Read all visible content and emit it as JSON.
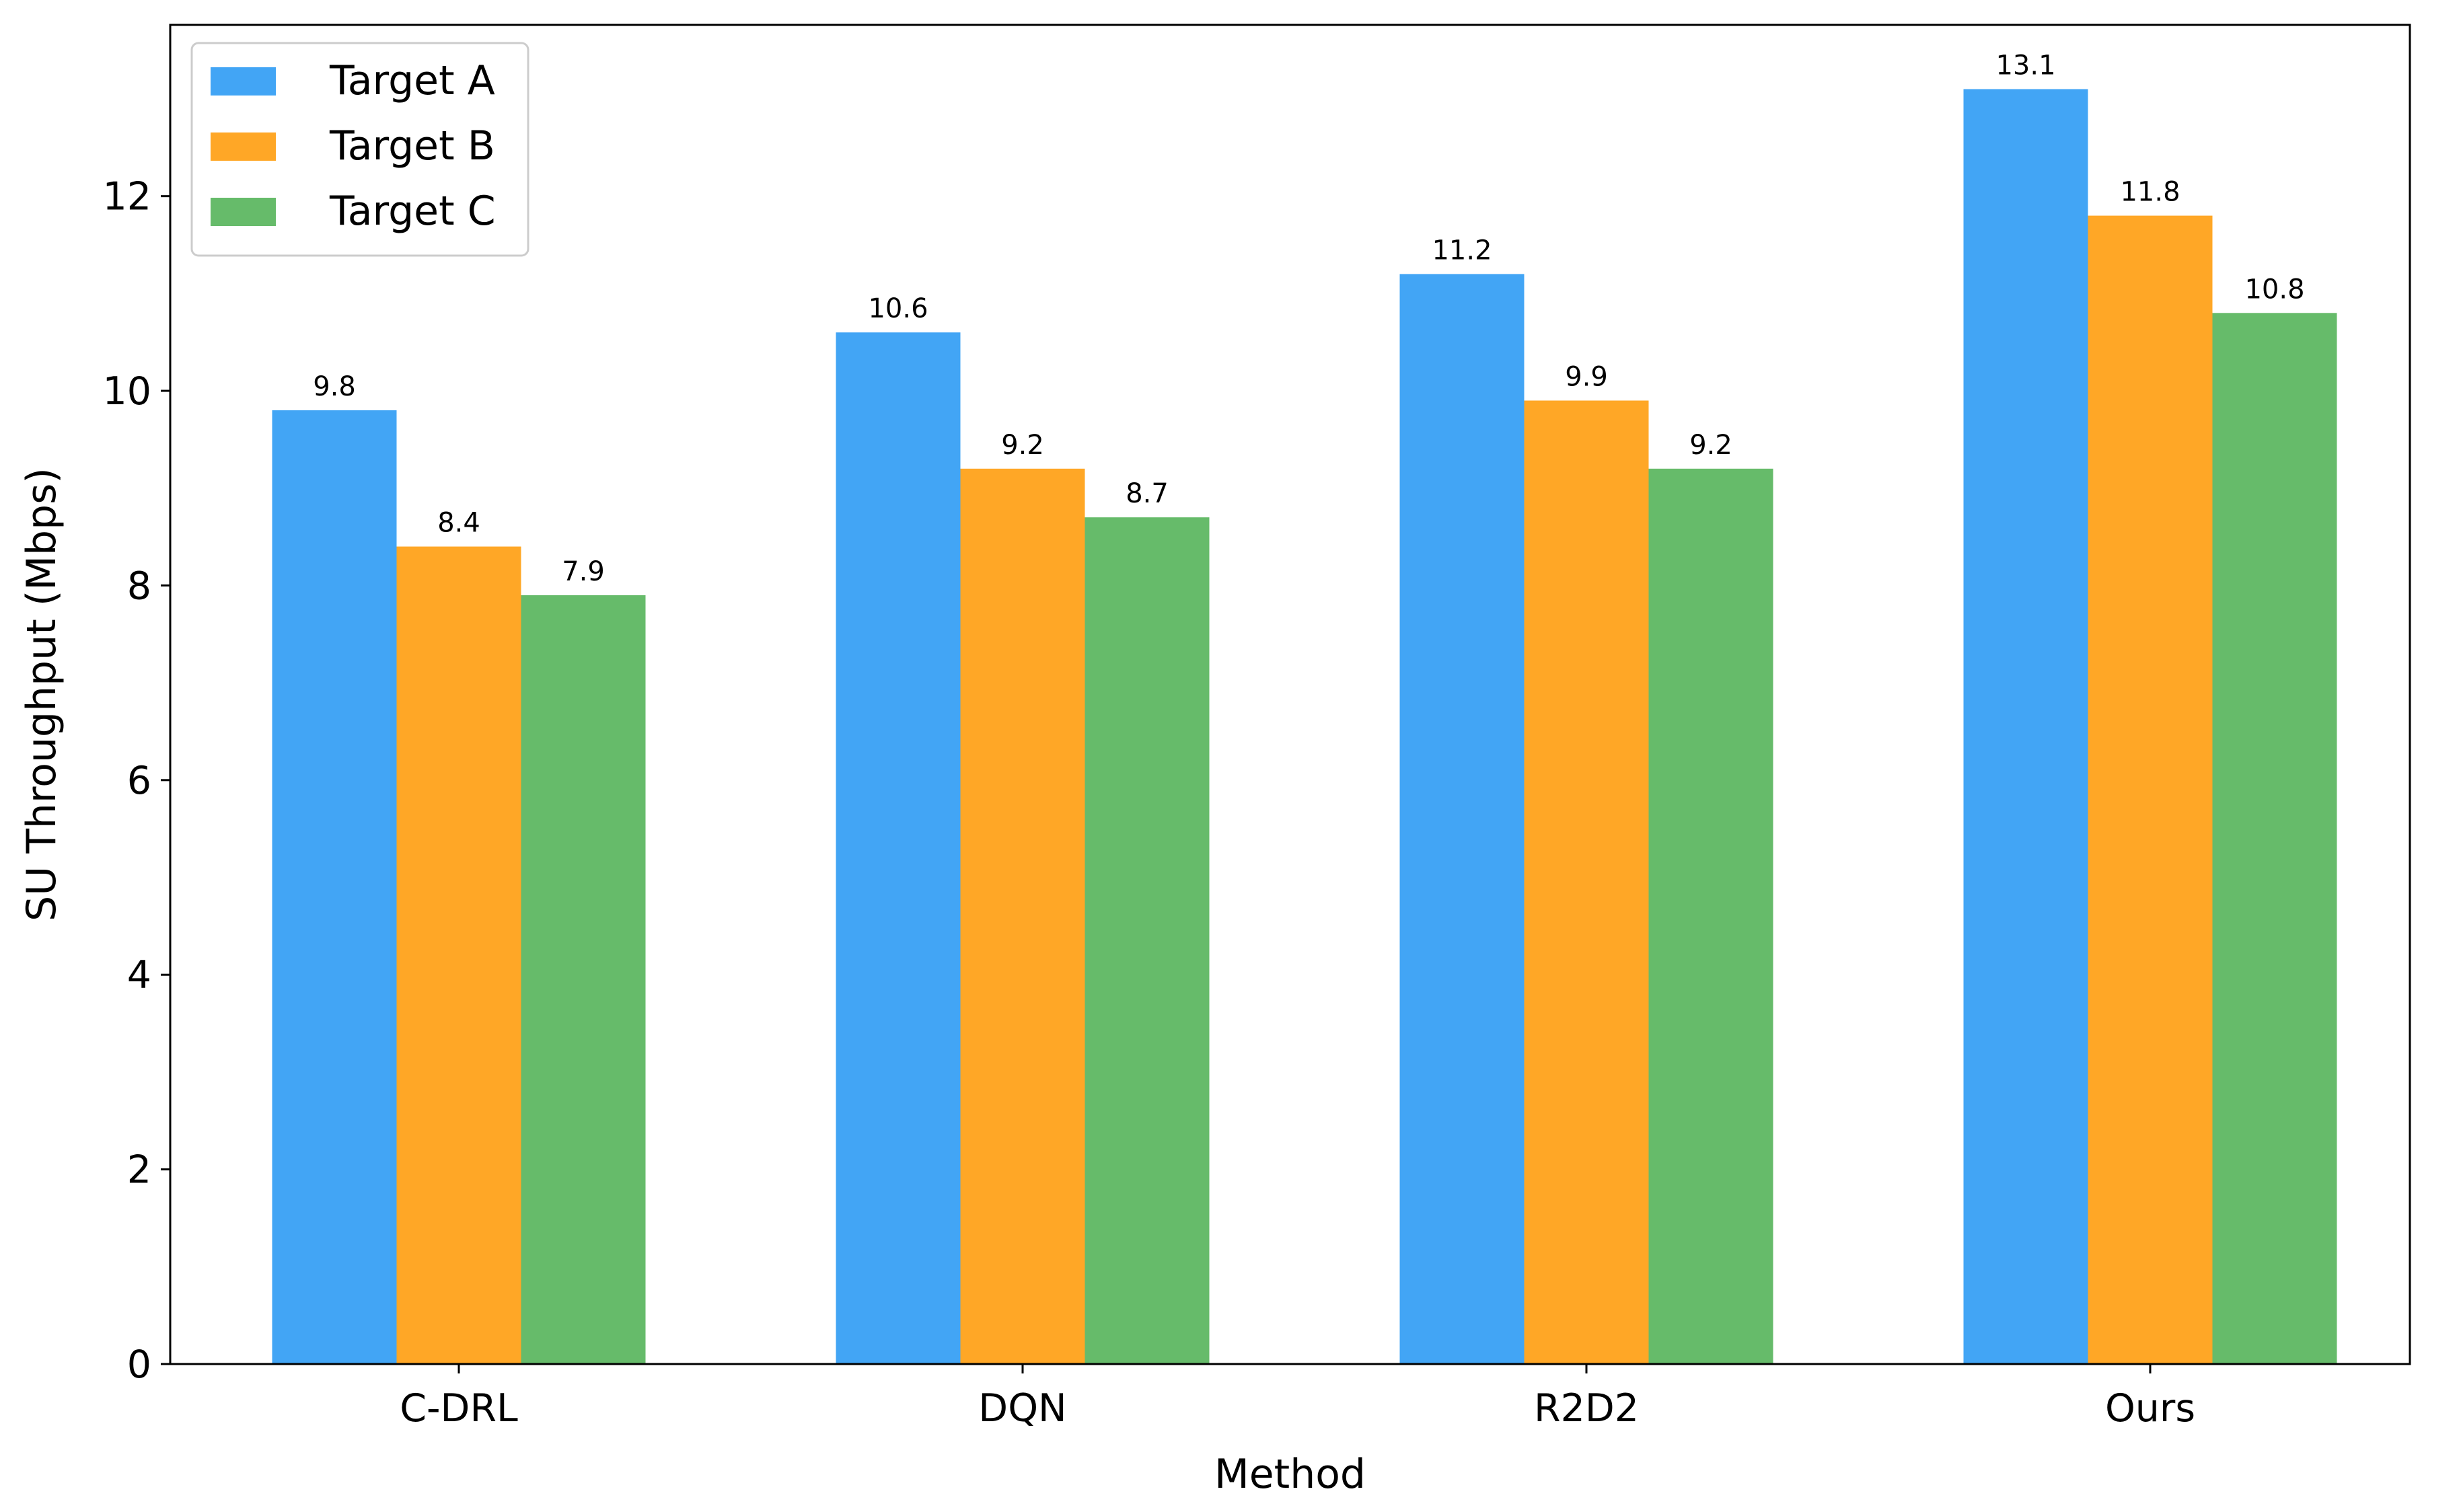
{
  "chart_data": {
    "type": "bar",
    "title": "",
    "xlabel": "Method",
    "ylabel": "SU Throughput (Mbps)",
    "categories": [
      "C-DRL",
      "DQN",
      "R2D2",
      "Ours"
    ],
    "series": [
      {
        "name": "Target A",
        "color": "#42a5f5",
        "values": [
          9.8,
          10.6,
          11.2,
          13.1
        ],
        "labels": [
          "9.8",
          "10.6",
          "11.2",
          "13.1"
        ]
      },
      {
        "name": "Target B",
        "color": "#ffa726",
        "values": [
          8.4,
          9.2,
          9.9,
          11.8
        ],
        "labels": [
          "8.4",
          "9.2",
          "9.9",
          "11.8"
        ]
      },
      {
        "name": "Target C",
        "color": "#66bb6a",
        "values": [
          7.9,
          8.7,
          9.2,
          10.8
        ],
        "labels": [
          "7.9",
          "8.7",
          "9.2",
          "10.8"
        ]
      }
    ],
    "ylim": [
      0,
      13.76
    ],
    "yticks": [
      0,
      2,
      4,
      6,
      8,
      10,
      12
    ],
    "grid": false,
    "legend_position": "top-left"
  }
}
